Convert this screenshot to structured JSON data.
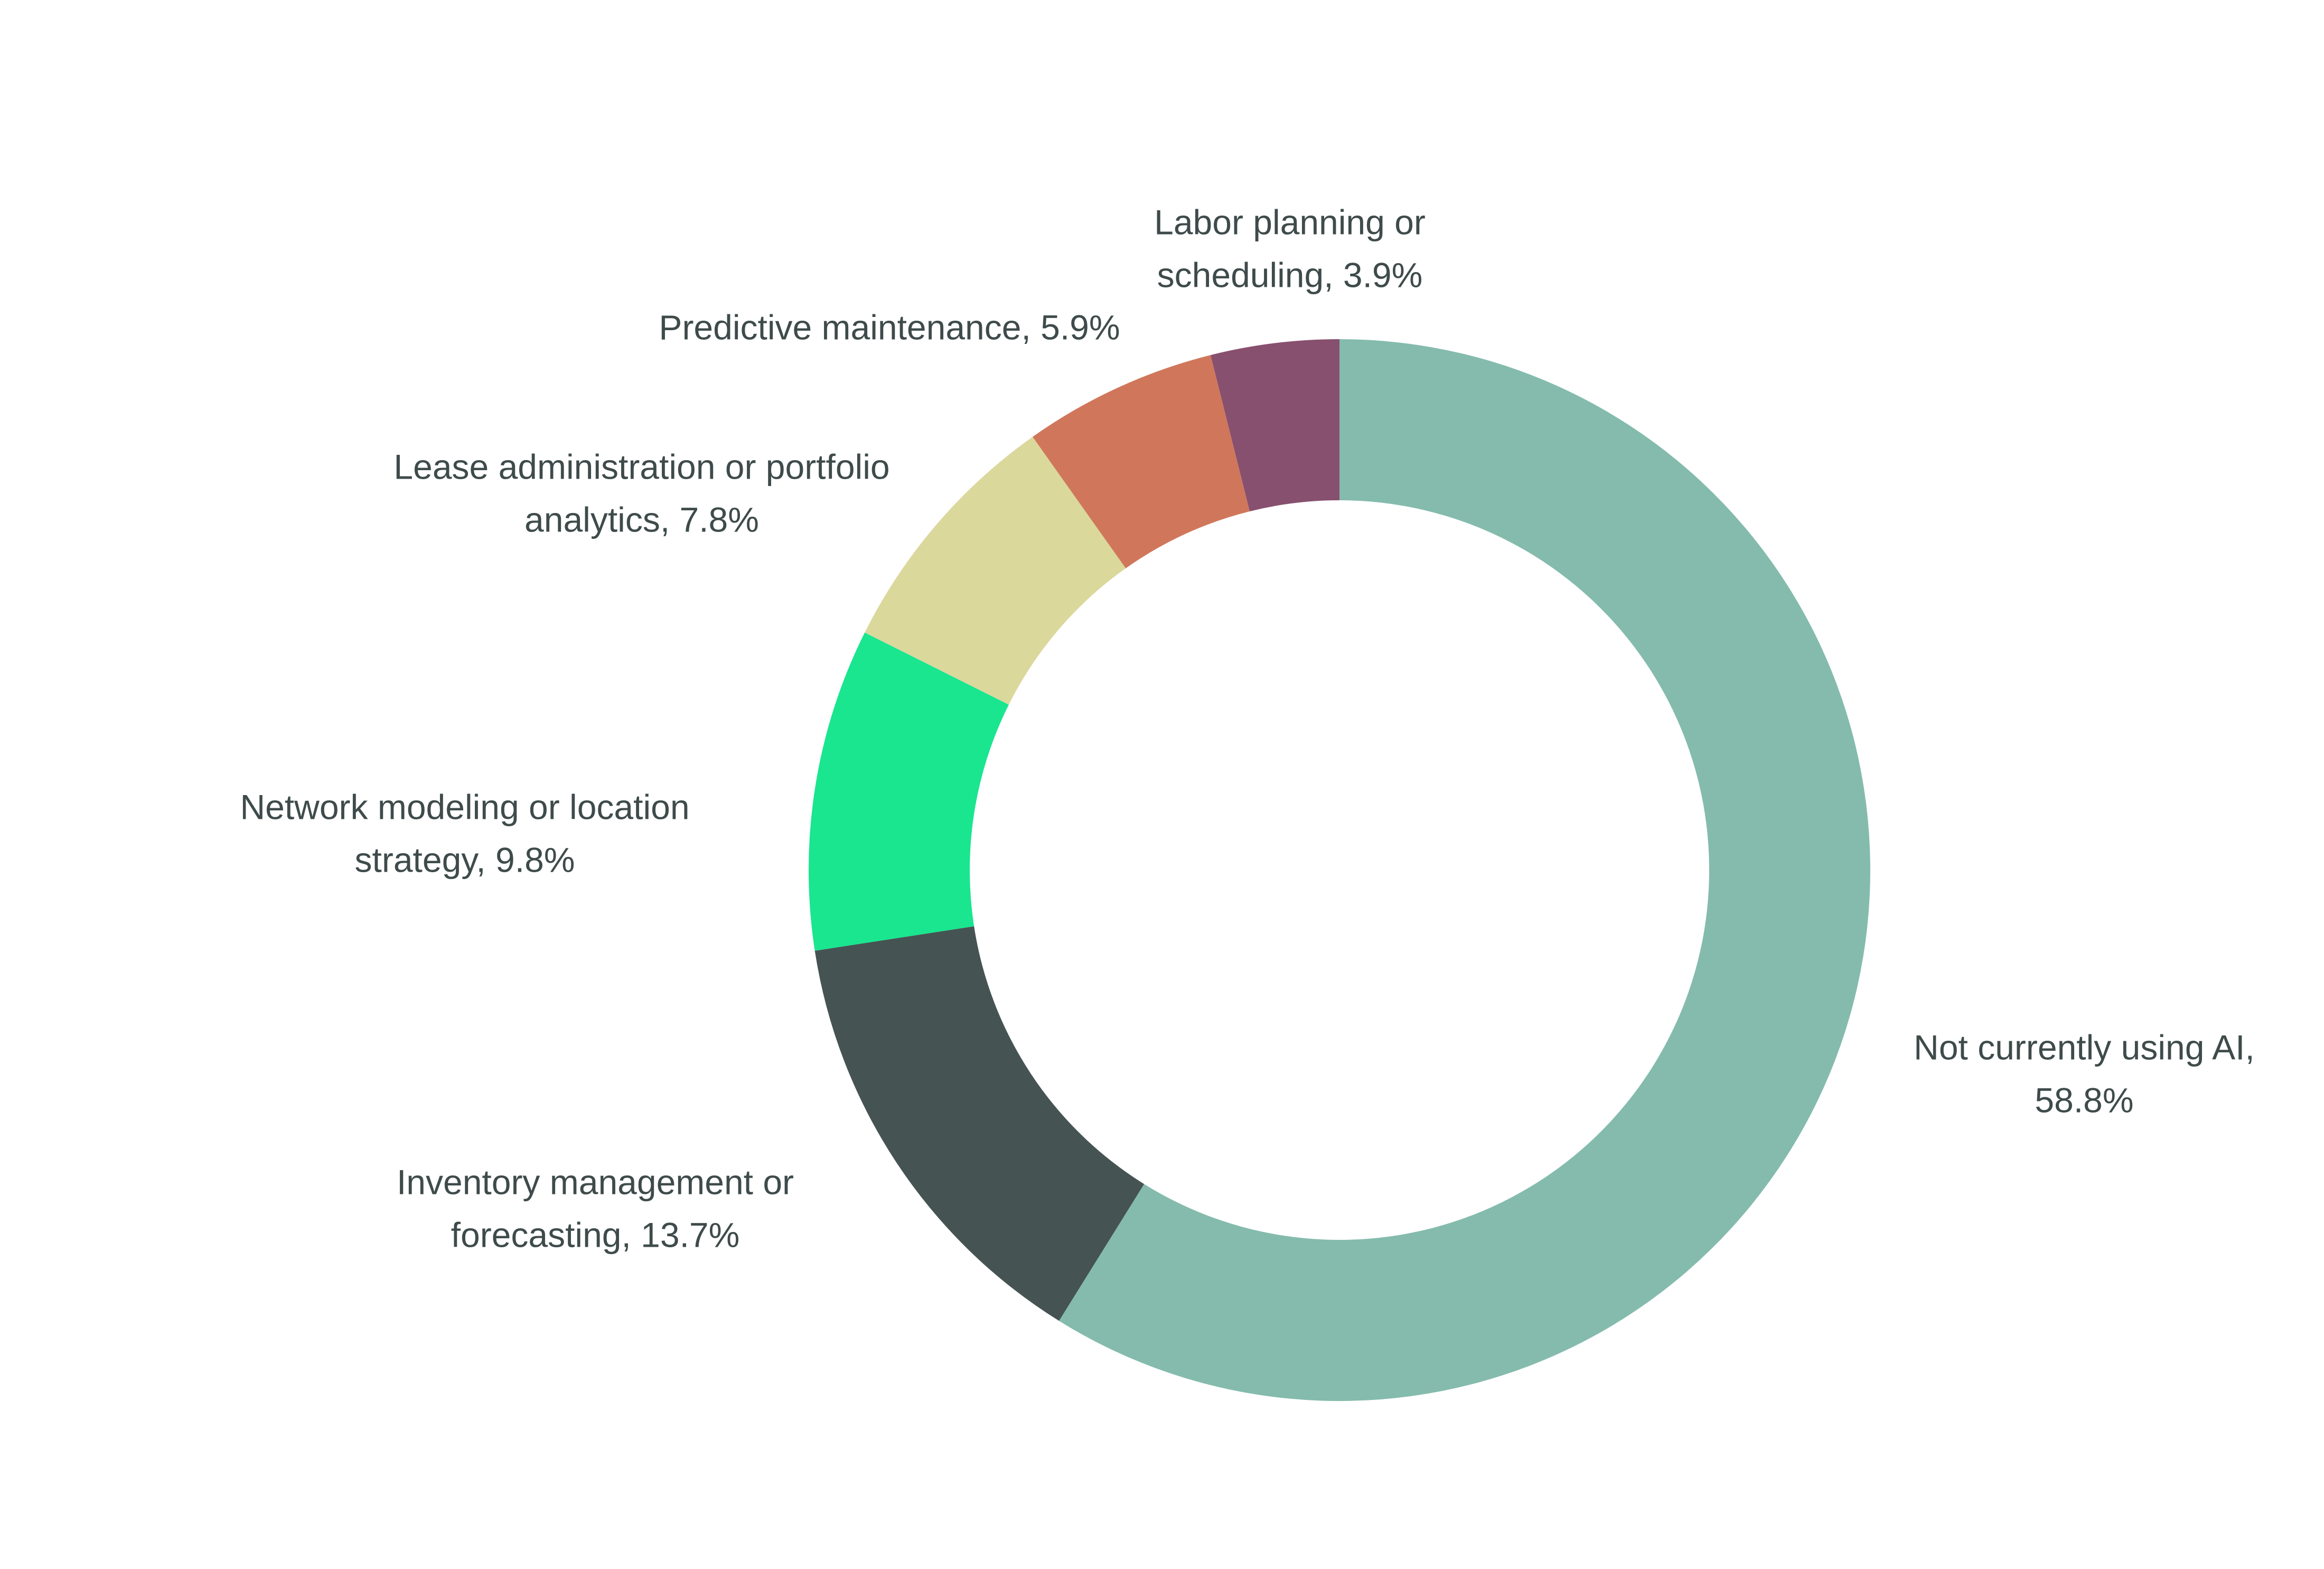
{
  "chart_data": {
    "type": "donut",
    "labels": [
      [
        "Not currently using AI,",
        "58.8%"
      ],
      [
        "Inventory management or",
        "forecasting, 13.7%"
      ],
      [
        "Network modeling or location",
        "strategy, 9.8%"
      ],
      [
        "Lease administration or portfolio",
        "analytics, 7.8%"
      ],
      [
        "Predictive maintenance, 5.9%"
      ],
      [
        "Labor planning or",
        "scheduling, 3.9%"
      ]
    ],
    "values": [
      58.8,
      13.7,
      9.8,
      7.8,
      5.9,
      3.9
    ],
    "colors": [
      "#84bbad",
      "#455353",
      "#19e68f",
      "#dbd89c",
      "#d0775b",
      "#88506f"
    ]
  }
}
